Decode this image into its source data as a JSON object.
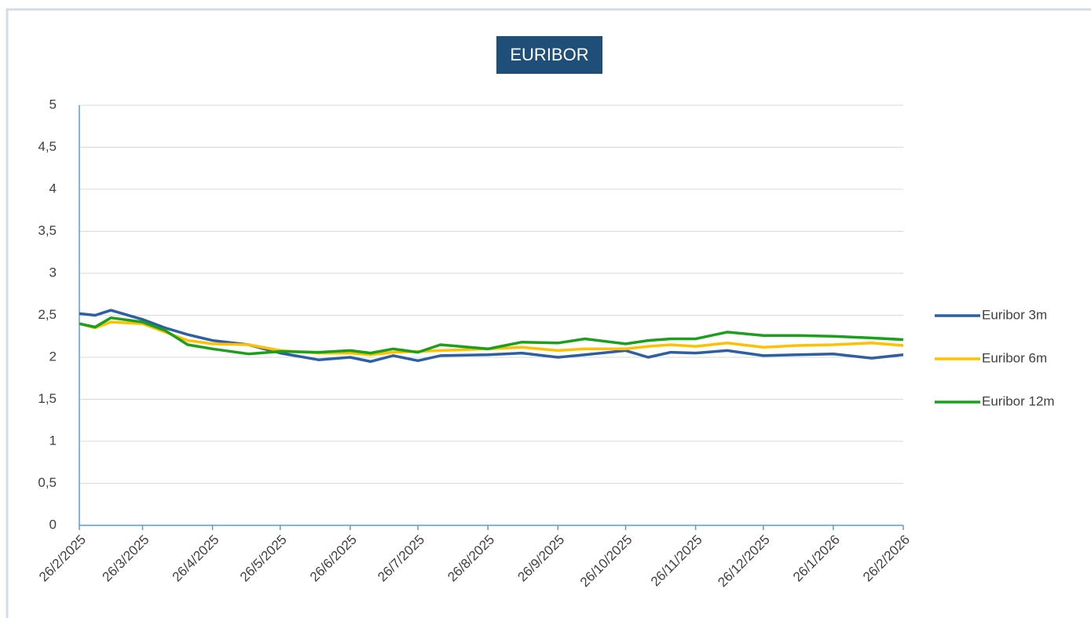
{
  "chart_data": {
    "type": "line",
    "title": "EURIBOR",
    "x": [
      "26/2/2025",
      "5/3/2025",
      "12/3/2025",
      "26/3/2025",
      "5/4/2025",
      "15/4/2025",
      "26/4/2025",
      "12/5/2025",
      "26/5/2025",
      "12/6/2025",
      "26/6/2025",
      "5/7/2025",
      "15/7/2025",
      "26/7/2025",
      "5/8/2025",
      "26/8/2025",
      "10/9/2025",
      "26/9/2025",
      "8/10/2025",
      "26/10/2025",
      "5/11/2025",
      "15/11/2025",
      "26/11/2025",
      "10/12/2025",
      "26/12/2025",
      "10/1/2026",
      "26/1/2026",
      "12/2/2026",
      "26/2/2026"
    ],
    "series": [
      {
        "name": "Euribor 3m",
        "color": "#2e5fa3",
        "values": [
          2.52,
          2.5,
          2.56,
          2.45,
          2.35,
          2.27,
          2.2,
          2.15,
          2.05,
          1.97,
          2.0,
          1.95,
          2.02,
          1.96,
          2.02,
          2.03,
          2.05,
          2.0,
          2.03,
          2.08,
          2.0,
          2.06,
          2.05,
          2.08,
          2.02,
          2.03,
          2.04,
          1.99,
          2.03
        ]
      },
      {
        "name": "Euribor 6m",
        "color": "#ffc000",
        "values": [
          2.4,
          2.35,
          2.42,
          2.4,
          2.3,
          2.2,
          2.16,
          2.15,
          2.08,
          2.05,
          2.05,
          2.03,
          2.06,
          2.07,
          2.08,
          2.1,
          2.12,
          2.08,
          2.1,
          2.1,
          2.13,
          2.15,
          2.13,
          2.17,
          2.12,
          2.14,
          2.15,
          2.17,
          2.14
        ]
      },
      {
        "name": "Euribor 12m",
        "color": "#1aa01a",
        "values": [
          2.4,
          2.36,
          2.47,
          2.42,
          2.32,
          2.15,
          2.1,
          2.04,
          2.07,
          2.06,
          2.08,
          2.05,
          2.1,
          2.06,
          2.15,
          2.1,
          2.18,
          2.17,
          2.22,
          2.16,
          2.2,
          2.22,
          2.22,
          2.3,
          2.26,
          2.26,
          2.25,
          2.23,
          2.21
        ]
      }
    ],
    "xlim": [
      "26/2/2025",
      "26/2/2026"
    ],
    "xticks": [
      "26/2/2025",
      "26/3/2025",
      "26/4/2025",
      "26/5/2025",
      "26/6/2025",
      "26/7/2025",
      "26/8/2025",
      "26/9/2025",
      "26/10/2025",
      "26/11/2025",
      "26/12/2025",
      "26/1/2026",
      "26/2/2026"
    ],
    "ylim": [
      0,
      5
    ],
    "yticks": [
      0,
      {
        "value": 0.5,
        "label": "0,5"
      },
      1,
      {
        "value": 1.5,
        "label": "1,5"
      },
      2,
      {
        "value": 2.5,
        "label": "2,5"
      },
      3,
      {
        "value": 3.5,
        "label": "3,5"
      },
      4,
      {
        "value": 4.5,
        "label": "4,5"
      },
      5
    ],
    "grid": true,
    "legend": "right"
  }
}
